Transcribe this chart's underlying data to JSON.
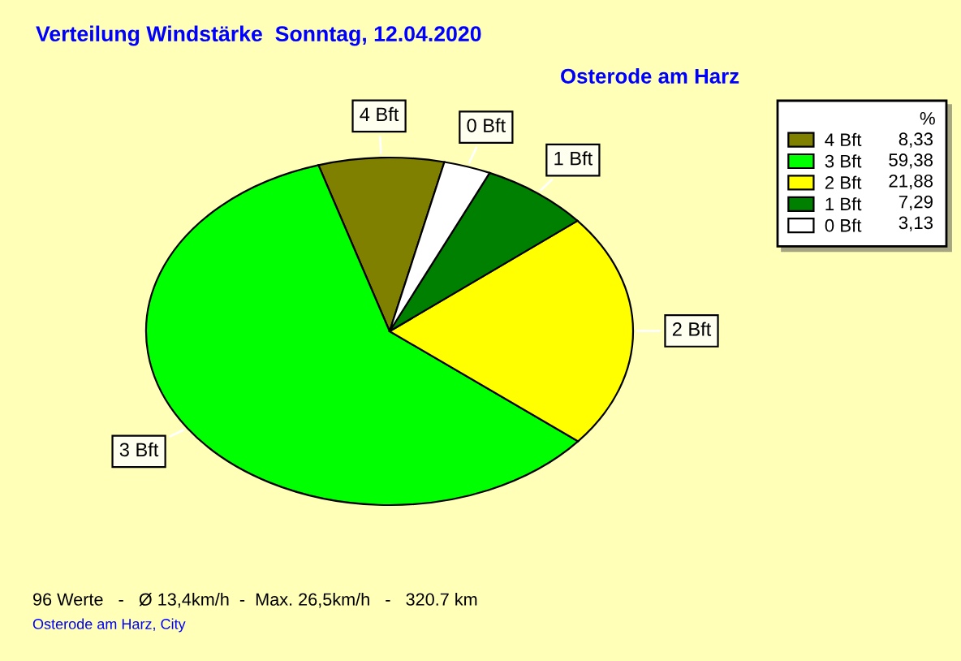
{
  "chart_data": {
    "type": "pie",
    "title": "Verteilung Windstärke  Sonntag, 12.04.2020",
    "subtitle": "Osterode am Harz",
    "categories": [
      "4 Bft",
      "3 Bft",
      "2 Bft",
      "1 Bft",
      "0 Bft"
    ],
    "values": [
      8.33,
      59.38,
      21.88,
      7.29,
      3.13
    ],
    "colors": [
      "#808000",
      "#00ff00",
      "#ffff00",
      "#008000",
      "#ffffff"
    ],
    "value_labels": [
      "8,33",
      "59,38",
      "21,88",
      "7,29",
      "3,13"
    ],
    "legend": "top right",
    "legend_title": "%",
    "annotations": [
      "96 Werte   -   Ø 13,4km/h  -  Max. 26,5km/h   -   320.7 km",
      "Osterode am Harz, City"
    ]
  }
}
